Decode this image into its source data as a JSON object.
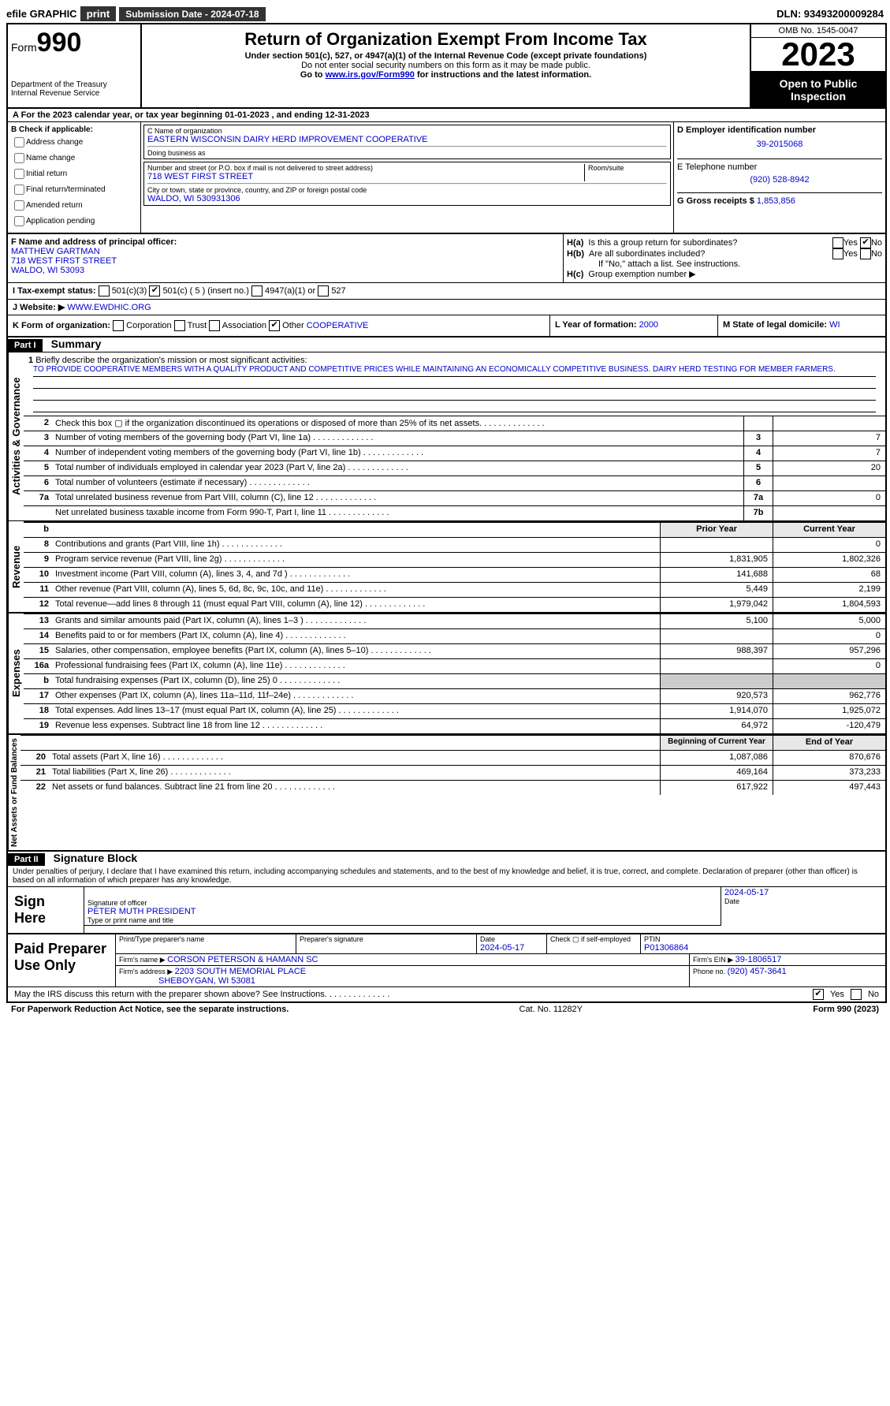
{
  "topbar": {
    "efile": "efile GRAPHIC",
    "print": "print",
    "submission_label": "Submission Date - 2024-07-18",
    "dln_label": "DLN: 93493200009284"
  },
  "header": {
    "form_word": "Form",
    "form_num": "990",
    "dept1": "Department of the Treasury",
    "dept2": "Internal Revenue Service",
    "title": "Return of Organization Exempt From Income Tax",
    "sub1": "Under section 501(c), 527, or 4947(a)(1) of the Internal Revenue Code (except private foundations)",
    "sub2": "Do not enter social security numbers on this form as it may be made public.",
    "sub3": "Go to www.irs.gov/Form990 for instructions and the latest information.",
    "omb": "OMB No. 1545-0047",
    "year": "2023",
    "open": "Open to Public Inspection"
  },
  "row_a": "A For the 2023 calendar year, or tax year beginning 01-01-2023   , and ending 12-31-2023",
  "col_b": {
    "label": "B Check if applicable:",
    "items": [
      "Address change",
      "Name change",
      "Initial return",
      "Final return/terminated",
      "Amended return",
      "Application pending"
    ]
  },
  "org": {
    "name_label": "C Name of organization",
    "name": "EASTERN WISCONSIN DAIRY HERD IMPROVEMENT COOPERATIVE",
    "dba_label": "Doing business as",
    "dba": "",
    "street_label": "Number and street (or P.O. box if mail is not delivered to street address)",
    "room_label": "Room/suite",
    "street": "718 WEST FIRST STREET",
    "city_label": "City or town, state or province, country, and ZIP or foreign postal code",
    "city": "WALDO, WI  530931306"
  },
  "right": {
    "d_label": "D Employer identification number",
    "ein": "39-2015068",
    "e_label": "E Telephone number",
    "phone": "(920) 528-8942",
    "g_label": "G Gross receipts $",
    "gross": "1,853,856"
  },
  "officer": {
    "f_label": "F Name and address of principal officer:",
    "name": "MATTHEW GARTMAN",
    "street": "718 WEST FIRST STREET",
    "city": "WALDO, WI  53093"
  },
  "h": {
    "a": "Is this a group return for subordinates?",
    "b": "Are all subordinates included?",
    "b2": "If \"No,\" attach a list. See instructions.",
    "c": "Group exemption number ▶"
  },
  "row_i": {
    "label": "I   Tax-exempt status:",
    "opts": [
      "501(c)(3)",
      "501(c) ( 5 ) (insert no.)",
      "4947(a)(1) or",
      "527"
    ]
  },
  "row_j": {
    "label": "J   Website: ▶",
    "val": "WWW.EWDHIC.ORG"
  },
  "row_k": {
    "label": "K Form of organization:",
    "opts": [
      "Corporation",
      "Trust",
      "Association",
      "Other"
    ],
    "other_val": "COOPERATIVE"
  },
  "row_l": {
    "label": "L Year of formation:",
    "val": "2000"
  },
  "row_m": {
    "label": "M State of legal domicile:",
    "val": "WI"
  },
  "part1": {
    "num": "Part I",
    "title": "Summary"
  },
  "mission_label": "Briefly describe the organization's mission or most significant activities:",
  "mission": "TO PROVIDE COOPERATIVE MEMBERS WITH A QUALITY PRODUCT AND COMPETITIVE PRICES WHILE MAINTAINING AN ECONOMICALLY COMPETITIVE BUSINESS. DAIRY HERD TESTING FOR MEMBER FARMERS.",
  "gov_rows": [
    {
      "n": "2",
      "t": "Check this box ▢ if the organization discontinued its operations or disposed of more than 25% of its net assets.",
      "code": "",
      "v": ""
    },
    {
      "n": "3",
      "t": "Number of voting members of the governing body (Part VI, line 1a)",
      "code": "3",
      "v": "7"
    },
    {
      "n": "4",
      "t": "Number of independent voting members of the governing body (Part VI, line 1b)",
      "code": "4",
      "v": "7"
    },
    {
      "n": "5",
      "t": "Total number of individuals employed in calendar year 2023 (Part V, line 2a)",
      "code": "5",
      "v": "20"
    },
    {
      "n": "6",
      "t": "Total number of volunteers (estimate if necessary)",
      "code": "6",
      "v": ""
    },
    {
      "n": "7a",
      "t": "Total unrelated business revenue from Part VIII, column (C), line 12",
      "code": "7a",
      "v": "0"
    },
    {
      "n": "",
      "t": "Net unrelated business taxable income from Form 990-T, Part I, line 11",
      "code": "7b",
      "v": ""
    }
  ],
  "rev_head": {
    "prior": "Prior Year",
    "current": "Current Year"
  },
  "rev_rows": [
    {
      "n": "8",
      "t": "Contributions and grants (Part VIII, line 1h)",
      "p": "",
      "c": "0"
    },
    {
      "n": "9",
      "t": "Program service revenue (Part VIII, line 2g)",
      "p": "1,831,905",
      "c": "1,802,326"
    },
    {
      "n": "10",
      "t": "Investment income (Part VIII, column (A), lines 3, 4, and 7d )",
      "p": "141,688",
      "c": "68"
    },
    {
      "n": "11",
      "t": "Other revenue (Part VIII, column (A), lines 5, 6d, 8c, 9c, 10c, and 11e)",
      "p": "5,449",
      "c": "2,199"
    },
    {
      "n": "12",
      "t": "Total revenue—add lines 8 through 11 (must equal Part VIII, column (A), line 12)",
      "p": "1,979,042",
      "c": "1,804,593"
    }
  ],
  "exp_rows": [
    {
      "n": "13",
      "t": "Grants and similar amounts paid (Part IX, column (A), lines 1–3 )",
      "p": "5,100",
      "c": "5,000"
    },
    {
      "n": "14",
      "t": "Benefits paid to or for members (Part IX, column (A), line 4)",
      "p": "",
      "c": "0"
    },
    {
      "n": "15",
      "t": "Salaries, other compensation, employee benefits (Part IX, column (A), lines 5–10)",
      "p": "988,397",
      "c": "957,296"
    },
    {
      "n": "16a",
      "t": "Professional fundraising fees (Part IX, column (A), line 11e)",
      "p": "",
      "c": "0"
    },
    {
      "n": "b",
      "t": "Total fundraising expenses (Part IX, column (D), line 25) 0",
      "p": "GREY",
      "c": "GREY"
    },
    {
      "n": "17",
      "t": "Other expenses (Part IX, column (A), lines 11a–11d, 11f–24e)",
      "p": "920,573",
      "c": "962,776"
    },
    {
      "n": "18",
      "t": "Total expenses. Add lines 13–17 (must equal Part IX, column (A), line 25)",
      "p": "1,914,070",
      "c": "1,925,072"
    },
    {
      "n": "19",
      "t": "Revenue less expenses. Subtract line 18 from line 12",
      "p": "64,972",
      "c": "-120,479"
    }
  ],
  "na_head": {
    "prior": "Beginning of Current Year",
    "current": "End of Year"
  },
  "na_rows": [
    {
      "n": "20",
      "t": "Total assets (Part X, line 16)",
      "p": "1,087,086",
      "c": "870,676"
    },
    {
      "n": "21",
      "t": "Total liabilities (Part X, line 26)",
      "p": "469,164",
      "c": "373,233"
    },
    {
      "n": "22",
      "t": "Net assets or fund balances. Subtract line 21 from line 20",
      "p": "617,922",
      "c": "497,443"
    }
  ],
  "part2": {
    "num": "Part II",
    "title": "Signature Block"
  },
  "penalties": "Under penalties of perjury, I declare that I have examined this return, including accompanying schedules and statements, and to the best of my knowledge and belief, it is true, correct, and complete. Declaration of preparer (other than officer) is based on all information of which preparer has any knowledge.",
  "sign": {
    "label": "Sign Here",
    "sig_label": "Signature of officer",
    "date_label": "Date",
    "date": "2024-05-17",
    "name_label": "Type or print name and title",
    "name": "PETER MUTH  PRESIDENT"
  },
  "paid": {
    "label": "Paid Preparer Use Only",
    "h1": "Print/Type preparer's name",
    "h2": "Preparer's signature",
    "h3": "Date",
    "date": "2024-05-17",
    "h4": "Check ▢ if self-employed",
    "h5": "PTIN",
    "ptin": "P01306864",
    "firm_name_label": "Firm's name    ▶",
    "firm_name": "CORSON PETERSON & HAMANN SC",
    "firm_ein_label": "Firm's EIN ▶",
    "firm_ein": "39-1806517",
    "firm_addr_label": "Firm's address ▶",
    "firm_addr1": "2203 SOUTH MEMORIAL PLACE",
    "firm_addr2": "SHEBOYGAN, WI  53081",
    "phone_label": "Phone no.",
    "phone": "(920) 457-3641"
  },
  "may_irs": "May the IRS discuss this return with the preparer shown above? See Instructions.",
  "footer": {
    "left": "For Paperwork Reduction Act Notice, see the separate instructions.",
    "mid": "Cat. No. 11282Y",
    "right": "Form 990 (2023)"
  },
  "sidelabels": {
    "gov": "Activities & Governance",
    "rev": "Revenue",
    "exp": "Expenses",
    "na": "Net Assets or Fund Balances"
  }
}
